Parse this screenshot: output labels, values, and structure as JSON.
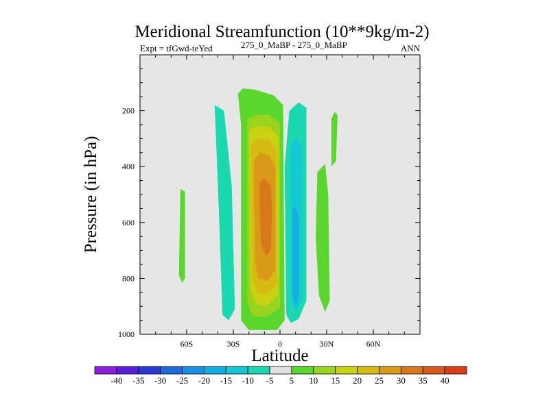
{
  "chart_data": {
    "type": "contour",
    "title": "Meridional Streamfunction (10**9kg/m-2)",
    "left_string": "Expt = tfGwd-teYed",
    "center_string": "275_0_MaBP - 275_0_MaBP",
    "right_string": "ANN",
    "xlabel": "Latitude",
    "ylabel": "Pressure (in hPa)",
    "xlim": [
      -90,
      90
    ],
    "ylim": [
      1000,
      0
    ],
    "xticks": [
      {
        "value": -60,
        "label": "60S"
      },
      {
        "value": -30,
        "label": "30S"
      },
      {
        "value": 0,
        "label": "0"
      },
      {
        "value": 30,
        "label": "30N"
      },
      {
        "value": 60,
        "label": "60N"
      }
    ],
    "yticks": [
      {
        "value": 200,
        "label": "200"
      },
      {
        "value": 400,
        "label": "400"
      },
      {
        "value": 600,
        "label": "600"
      },
      {
        "value": 800,
        "label": "800"
      },
      {
        "value": 1000,
        "label": "1000"
      }
    ],
    "colorbar": {
      "labels": [
        "-40",
        "-35",
        "-30",
        "-25",
        "-20",
        "-15",
        "-10",
        "-5",
        "5",
        "10",
        "15",
        "20",
        "25",
        "30",
        "35",
        "40"
      ],
      "colors": [
        "#8a1de0",
        "#5a1ed8",
        "#2a3ad0",
        "#1f6ad8",
        "#1a8ee0",
        "#12b0e0",
        "#16c8d4",
        "#1ad8b0",
        "#e0e0e0",
        "#5ad62e",
        "#98d41e",
        "#c8d212",
        "#d8ba14",
        "#d89a18",
        "#d8781c",
        "#d85a1c",
        "#d83c1a"
      ]
    },
    "cells": [
      {
        "name": "cell-60s",
        "value": 5,
        "points": [
          [
            -64,
            480
          ],
          [
            -61,
            490
          ],
          [
            -61,
            800
          ],
          [
            -63,
            815
          ],
          [
            -65,
            790
          ]
        ]
      },
      {
        "name": "cell-35s",
        "value": -5,
        "points": [
          [
            -42,
            180
          ],
          [
            -36,
            200
          ],
          [
            -31,
            470
          ],
          [
            -29,
            910
          ],
          [
            -33,
            950
          ],
          [
            -37,
            930
          ],
          [
            -39,
            600
          ]
        ]
      },
      {
        "name": "cell-10s-l1",
        "value": 5,
        "points": [
          [
            -27,
            140
          ],
          [
            -24,
            120
          ],
          [
            -16,
            125
          ],
          [
            -4,
            145
          ],
          [
            2,
            180
          ],
          [
            3,
            950
          ],
          [
            -2,
            985
          ],
          [
            -20,
            985
          ],
          [
            -25,
            950
          ],
          [
            -25,
            250
          ]
        ]
      },
      {
        "name": "cell-10s-l2",
        "value": 10,
        "points": [
          [
            -23,
            190
          ],
          [
            -18,
            170
          ],
          [
            -8,
            170
          ],
          [
            1,
            205
          ],
          [
            1,
            930
          ],
          [
            -8,
            965
          ],
          [
            -20,
            960
          ],
          [
            -23,
            920
          ]
        ]
      },
      {
        "name": "cell-10s-l3",
        "value": 15,
        "points": [
          [
            -21,
            230
          ],
          [
            -16,
            215
          ],
          [
            -7,
            215
          ],
          [
            0,
            245
          ],
          [
            0,
            905
          ],
          [
            -9,
            938
          ],
          [
            -18,
            935
          ],
          [
            -21,
            880
          ]
        ]
      },
      {
        "name": "cell-10s-l4",
        "value": 20,
        "points": [
          [
            -20,
            270
          ],
          [
            -15,
            255
          ],
          [
            -7,
            258
          ],
          [
            -1,
            290
          ],
          [
            -1,
            860
          ],
          [
            -9,
            900
          ],
          [
            -16,
            890
          ],
          [
            -19,
            840
          ]
        ]
      },
      {
        "name": "cell-10s-l5",
        "value": 25,
        "points": [
          [
            -19,
            320
          ],
          [
            -14,
            300
          ],
          [
            -7,
            305
          ],
          [
            -2,
            340
          ],
          [
            -2,
            820
          ],
          [
            -9,
            860
          ],
          [
            -15,
            850
          ],
          [
            -18,
            800
          ]
        ]
      },
      {
        "name": "cell-10s-l6",
        "value": 30,
        "points": [
          [
            -17,
            380
          ],
          [
            -13,
            350
          ],
          [
            -7,
            360
          ],
          [
            -3,
            400
          ],
          [
            -3,
            770
          ],
          [
            -8,
            810
          ],
          [
            -14,
            800
          ],
          [
            -16,
            740
          ]
        ]
      },
      {
        "name": "cell-10s-l7",
        "value": 35,
        "points": [
          [
            -13,
            460
          ],
          [
            -10,
            440
          ],
          [
            -6,
            470
          ],
          [
            -5,
            560
          ],
          [
            -6,
            700
          ],
          [
            -9,
            720
          ],
          [
            -12,
            680
          ],
          [
            -13,
            560
          ]
        ]
      },
      {
        "name": "cell-10n-l1",
        "value": -5,
        "points": [
          [
            6,
            200
          ],
          [
            12,
            170
          ],
          [
            17,
            190
          ],
          [
            17,
            880
          ],
          [
            12,
            945
          ],
          [
            7,
            960
          ],
          [
            4,
            930
          ],
          [
            3,
            400
          ]
        ]
      },
      {
        "name": "cell-10n-l2",
        "value": -10,
        "points": [
          [
            7,
            320
          ],
          [
            11,
            290
          ],
          [
            14,
            330
          ],
          [
            14,
            880
          ],
          [
            10,
            920
          ],
          [
            7,
            880
          ]
        ]
      },
      {
        "name": "cell-10n-l3",
        "value": -15,
        "points": [
          [
            8,
            560
          ],
          [
            10,
            540
          ],
          [
            12,
            580
          ],
          [
            12,
            870
          ],
          [
            10,
            900
          ],
          [
            8,
            860
          ]
        ]
      },
      {
        "name": "cell-30n-a",
        "value": 5,
        "points": [
          [
            24,
            420
          ],
          [
            29,
            390
          ],
          [
            31,
            500
          ],
          [
            32,
            880
          ],
          [
            29,
            920
          ],
          [
            25,
            860
          ],
          [
            23,
            650
          ]
        ]
      },
      {
        "name": "cell-30n-b",
        "value": 5,
        "points": [
          [
            33,
            230
          ],
          [
            35,
            205
          ],
          [
            37,
            215
          ],
          [
            36,
            380
          ],
          [
            33,
            400
          ]
        ]
      }
    ]
  }
}
